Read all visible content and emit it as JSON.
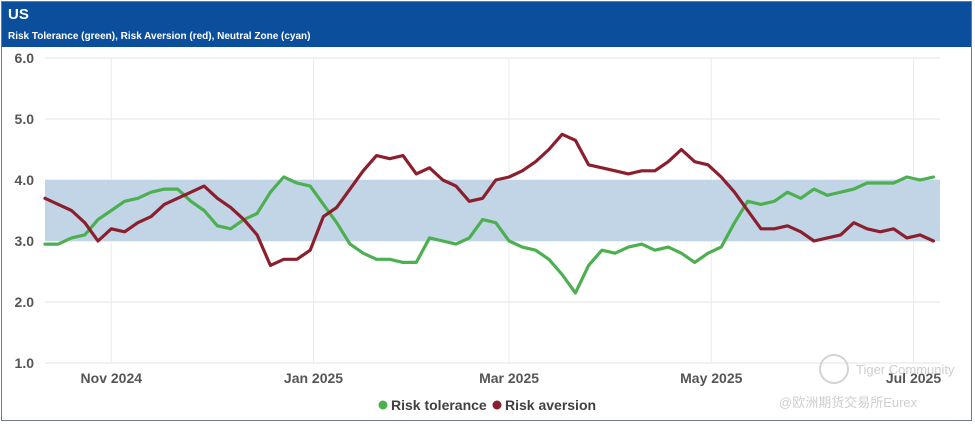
{
  "header": {
    "title": "US",
    "subtitle": "Risk Tolerance (green), Risk Aversion (red), Neutral Zone (cyan)"
  },
  "watermark": {
    "line1": "Tiger Community",
    "line2": "@欧洲期货交易所Eurex"
  },
  "chart_data": {
    "type": "line",
    "title": "US",
    "subtitle": "Risk Tolerance (green), Risk Aversion (red), Neutral Zone (cyan)",
    "ylim": [
      1.0,
      6.0
    ],
    "yticks": [
      "1.0",
      "2.0",
      "3.0",
      "4.0",
      "5.0",
      "6.0"
    ],
    "xlim": [
      0,
      270
    ],
    "xticks": [
      {
        "label": "Nov 2024",
        "t": 20
      },
      {
        "label": "Jan 2025",
        "t": 81
      },
      {
        "label": "Mar 2025",
        "t": 140
      },
      {
        "label": "May 2025",
        "t": 201
      },
      {
        "label": "Jul 2025",
        "t": 262
      }
    ],
    "neutral_zone": {
      "low": 3.0,
      "high": 4.0,
      "color": "#c2d5e6"
    },
    "grid": true,
    "legend_position": "bottom-center",
    "series": [
      {
        "name": "Risk tolerance",
        "color": "#4caf50",
        "t": [
          0,
          4,
          8,
          12,
          16,
          20,
          24,
          28,
          32,
          36,
          40,
          44,
          48,
          52,
          56,
          60,
          64,
          68,
          72,
          76,
          80,
          84,
          88,
          92,
          96,
          100,
          104,
          108,
          112,
          116,
          120,
          124,
          128,
          132,
          136,
          140,
          144,
          148,
          152,
          156,
          160,
          164,
          168,
          172,
          176,
          180,
          184,
          188,
          192,
          196,
          200,
          204,
          208,
          212,
          216,
          220,
          224,
          228,
          232,
          236,
          240,
          244,
          248,
          252,
          256,
          260,
          264,
          268
        ],
        "values": [
          2.95,
          2.95,
          3.05,
          3.1,
          3.35,
          3.5,
          3.65,
          3.7,
          3.8,
          3.85,
          3.85,
          3.65,
          3.5,
          3.25,
          3.2,
          3.35,
          3.45,
          3.8,
          4.05,
          3.95,
          3.9,
          3.6,
          3.3,
          2.95,
          2.8,
          2.7,
          2.7,
          2.65,
          2.65,
          3.05,
          3.0,
          2.95,
          3.05,
          3.35,
          3.3,
          3.0,
          2.9,
          2.85,
          2.7,
          2.45,
          2.15,
          2.6,
          2.85,
          2.8,
          2.9,
          2.95,
          2.85,
          2.9,
          2.8,
          2.65,
          2.8,
          2.9,
          3.3,
          3.65,
          3.6,
          3.65,
          3.8,
          3.7,
          3.85,
          3.75,
          3.8,
          3.85,
          3.95,
          3.95,
          3.95,
          4.05,
          4.0,
          4.05
        ]
      },
      {
        "name": "Risk aversion",
        "color": "#8b1f2e",
        "t": [
          0,
          4,
          8,
          12,
          16,
          20,
          24,
          28,
          32,
          36,
          40,
          44,
          48,
          52,
          56,
          60,
          64,
          68,
          72,
          76,
          80,
          84,
          88,
          92,
          96,
          100,
          104,
          108,
          112,
          116,
          120,
          124,
          128,
          132,
          136,
          140,
          144,
          148,
          152,
          156,
          160,
          164,
          168,
          172,
          176,
          180,
          184,
          188,
          192,
          196,
          200,
          204,
          208,
          212,
          216,
          220,
          224,
          228,
          232,
          236,
          240,
          244,
          248,
          252,
          256,
          260,
          264,
          268
        ],
        "values": [
          3.7,
          3.6,
          3.5,
          3.3,
          3.0,
          3.2,
          3.15,
          3.3,
          3.4,
          3.6,
          3.7,
          3.8,
          3.9,
          3.7,
          3.55,
          3.35,
          3.1,
          2.6,
          2.7,
          2.7,
          2.85,
          3.4,
          3.55,
          3.85,
          4.15,
          4.4,
          4.35,
          4.4,
          4.1,
          4.2,
          4.0,
          3.9,
          3.65,
          3.7,
          4.0,
          4.05,
          4.15,
          4.3,
          4.5,
          4.75,
          4.65,
          4.25,
          4.2,
          4.15,
          4.1,
          4.15,
          4.15,
          4.3,
          4.5,
          4.3,
          4.25,
          4.05,
          3.8,
          3.5,
          3.2,
          3.2,
          3.25,
          3.15,
          3.0,
          3.05,
          3.1,
          3.3,
          3.2,
          3.15,
          3.2,
          3.05,
          3.1,
          3.0
        ]
      }
    ]
  }
}
